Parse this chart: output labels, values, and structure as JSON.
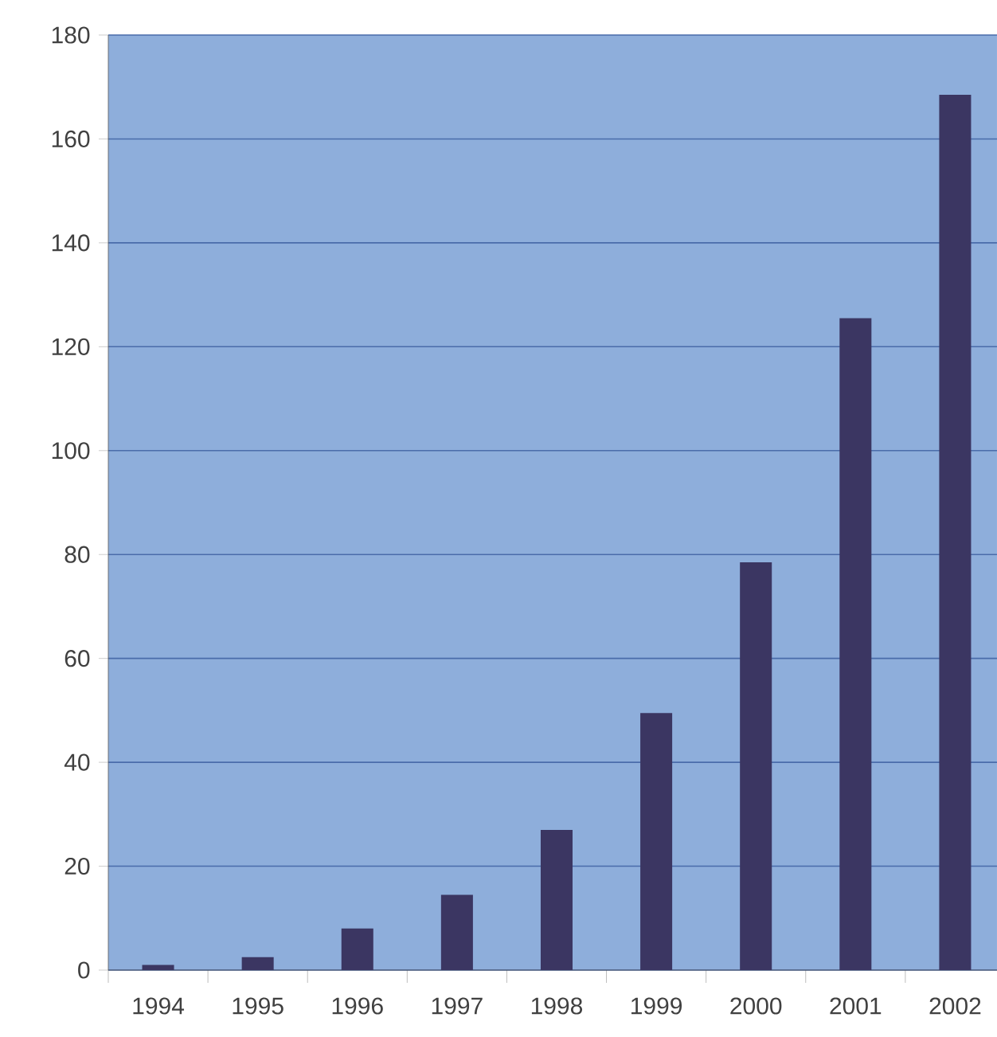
{
  "chart_data": {
    "type": "bar",
    "categories": [
      "1994",
      "1995",
      "1996",
      "1997",
      "1998",
      "1999",
      "2000",
      "2001",
      "2002"
    ],
    "values": [
      1,
      2.5,
      8,
      14.5,
      27,
      49.5,
      78.5,
      125.5,
      168.5
    ],
    "color": "#3b3662",
    "ylim": [
      0,
      180
    ],
    "yticks": [
      0,
      20,
      40,
      60,
      80,
      100,
      120,
      140,
      160,
      180
    ],
    "grid": "y"
  }
}
